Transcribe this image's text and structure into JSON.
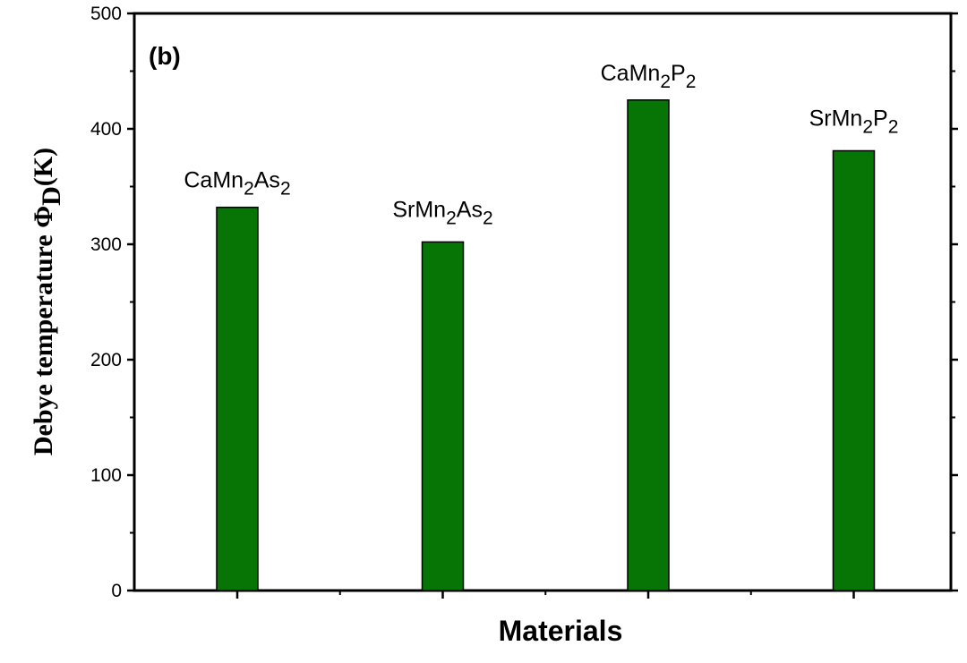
{
  "chart_data": {
    "type": "bar",
    "panel_label": "(b)",
    "categories": [
      {
        "base": "CaMn",
        "sub1": "2",
        "mid": "As",
        "sub2": "2"
      },
      {
        "base": "SrMn",
        "sub1": "2",
        "mid": "As",
        "sub2": "2"
      },
      {
        "base": "CaMn",
        "sub1": "2",
        "mid": "P",
        "sub2": "2"
      },
      {
        "base": "SrMn",
        "sub1": "2",
        "mid": "P",
        "sub2": "2"
      }
    ],
    "values": [
      332,
      302,
      425,
      381
    ],
    "xlabel": "Materials",
    "ylabel": {
      "main": "Debye temperature Φ",
      "sub": "D",
      "unit": "(K)"
    },
    "ylim": [
      0,
      500
    ],
    "yticks": [
      "0",
      "100",
      "200",
      "300",
      "400",
      "500"
    ],
    "bar_color": "#067506",
    "grid": false,
    "legend": "none"
  }
}
